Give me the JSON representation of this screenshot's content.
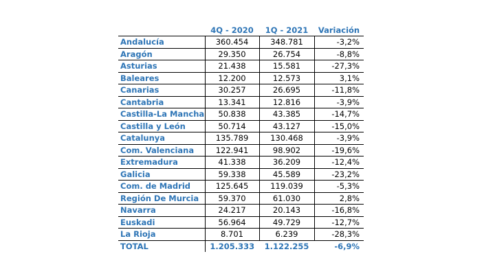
{
  "headers": [
    "",
    "4Q - 2020",
    "1Q - 2021",
    "Variación"
  ],
  "rows": [
    {
      "name": "Andalucía",
      "q4_2020": "360.454",
      "q1_2021": "348.781",
      "var": "-3,2%"
    },
    {
      "name": "Aragón",
      "q4_2020": "29.350",
      "q1_2021": "26.754",
      "var": "-8,8%"
    },
    {
      "name": "Asturias",
      "q4_2020": "21.438",
      "q1_2021": "15.581",
      "var": "-27,3%"
    },
    {
      "name": "Baleares",
      "q4_2020": "12.200",
      "q1_2021": "12.573",
      "var": "3,1%"
    },
    {
      "name": "Canarias",
      "q4_2020": "30.257",
      "q1_2021": "26.695",
      "var": "-11,8%"
    },
    {
      "name": "Cantabria",
      "q4_2020": "13.341",
      "q1_2021": "12.816",
      "var": "-3,9%"
    },
    {
      "name": "Castilla-La Mancha",
      "q4_2020": "50.838",
      "q1_2021": "43.385",
      "var": "-14,7%"
    },
    {
      "name": "Castilla y León",
      "q4_2020": "50.714",
      "q1_2021": "43.127",
      "var": "-15,0%"
    },
    {
      "name": "Catalunya",
      "q4_2020": "135.789",
      "q1_2021": "130.468",
      "var": "-3,9%"
    },
    {
      "name": "Com. Valenciana",
      "q4_2020": "122.941",
      "q1_2021": "98.902",
      "var": "-19,6%"
    },
    {
      "name": "Extremadura",
      "q4_2020": "41.338",
      "q1_2021": "36.209",
      "var": "-12,4%"
    },
    {
      "name": "Galicia",
      "q4_2020": "59.338",
      "q1_2021": "45.589",
      "var": "-23,2%"
    },
    {
      "name": "Com. de Madrid",
      "q4_2020": "125.645",
      "q1_2021": "119.039",
      "var": "-5,3%"
    },
    {
      "name": "Región De Murcia",
      "q4_2020": "59.370",
      "q1_2021": "61.030",
      "var": "2,8%"
    },
    {
      "name": "Navarra",
      "q4_2020": "24.217",
      "q1_2021": "20.143",
      "var": "-16,8%"
    },
    {
      "name": "Euskadi",
      "q4_2020": "56.964",
      "q1_2021": "49.729",
      "var": "-12,7%"
    },
    {
      "name": "La Rioja",
      "q4_2020": "8.701",
      "q1_2021": "6.239",
      "var": "-28,3%"
    }
  ],
  "total": {
    "name": "TOTAL",
    "q4_2020": "1.205.333",
    "q1_2021": "1.122.255",
    "var": "-6,9%"
  },
  "colors": {
    "accent": "#2e75b6",
    "text": "#000000",
    "background": "#ffffff"
  }
}
